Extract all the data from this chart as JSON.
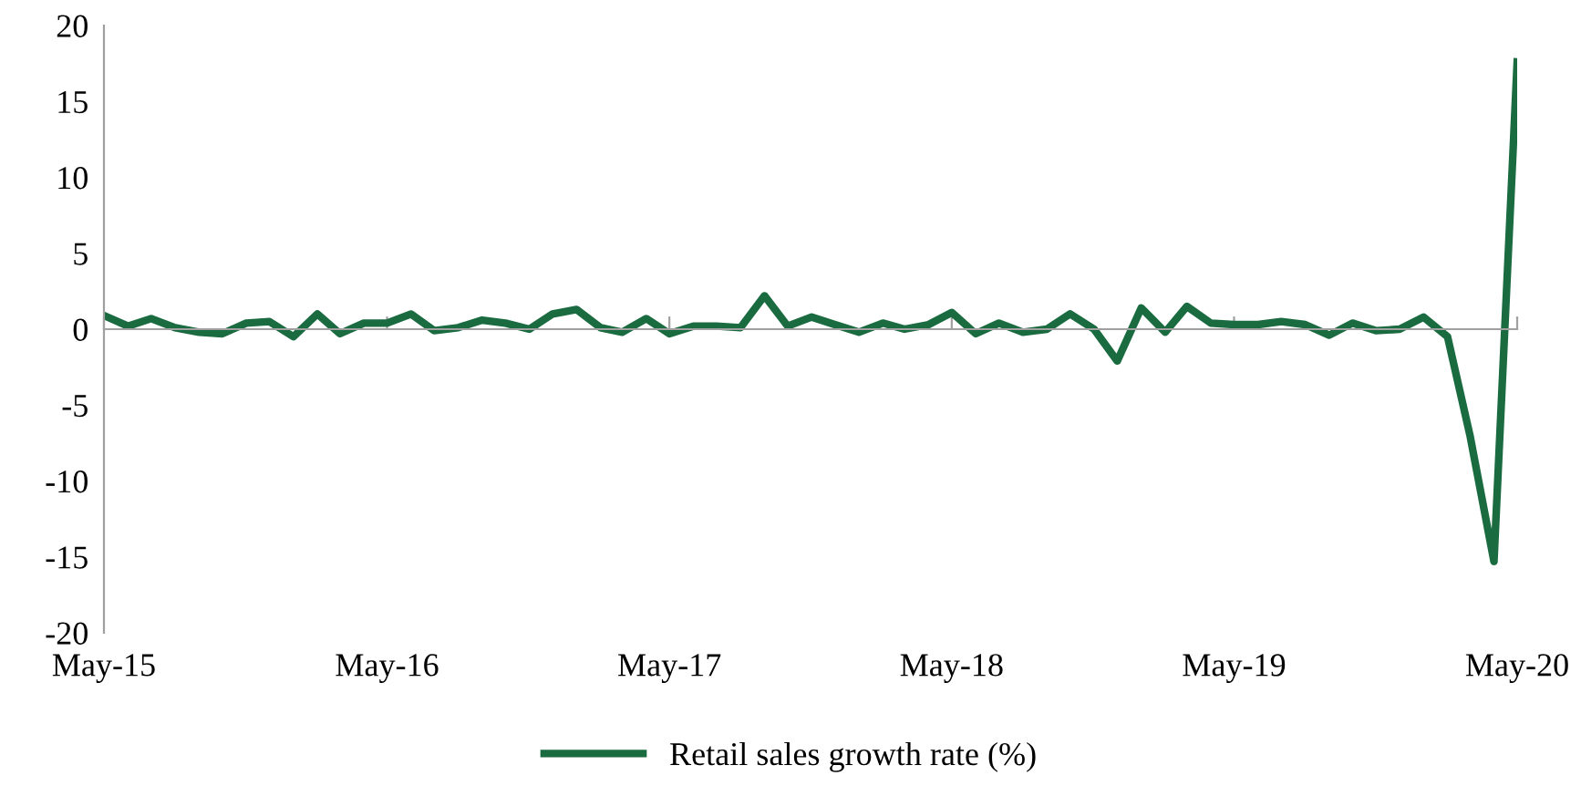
{
  "chart_data": {
    "type": "line",
    "x": [
      "2015-05",
      "2015-06",
      "2015-07",
      "2015-08",
      "2015-09",
      "2015-10",
      "2015-11",
      "2015-12",
      "2016-01",
      "2016-02",
      "2016-03",
      "2016-04",
      "2016-05",
      "2016-06",
      "2016-07",
      "2016-08",
      "2016-09",
      "2016-10",
      "2016-11",
      "2016-12",
      "2017-01",
      "2017-02",
      "2017-03",
      "2017-04",
      "2017-05",
      "2017-06",
      "2017-07",
      "2017-08",
      "2017-09",
      "2017-10",
      "2017-11",
      "2017-12",
      "2018-01",
      "2018-02",
      "2018-03",
      "2018-04",
      "2018-05",
      "2018-06",
      "2018-07",
      "2018-08",
      "2018-09",
      "2018-10",
      "2018-11",
      "2018-12",
      "2019-01",
      "2019-02",
      "2019-03",
      "2019-04",
      "2019-05",
      "2019-06",
      "2019-07",
      "2019-08",
      "2019-09",
      "2019-10",
      "2019-11",
      "2019-12",
      "2020-01",
      "2020-02",
      "2020-03",
      "2020-04",
      "2020-05"
    ],
    "series": [
      {
        "name": "Retail sales growth rate (%)",
        "color": "#1b6b41",
        "values": [
          0.9,
          0.2,
          0.7,
          0.1,
          -0.2,
          -0.3,
          0.4,
          0.5,
          -0.5,
          1.0,
          -0.3,
          0.4,
          0.4,
          1.0,
          -0.1,
          0.1,
          0.6,
          0.4,
          0.0,
          1.0,
          1.3,
          0.1,
          -0.2,
          0.7,
          -0.3,
          0.2,
          0.2,
          0.1,
          2.2,
          0.2,
          0.8,
          0.3,
          -0.2,
          0.4,
          0.0,
          0.3,
          1.1,
          -0.3,
          0.4,
          -0.2,
          0.0,
          1.0,
          0.0,
          -2.1,
          1.4,
          -0.2,
          1.5,
          0.4,
          0.3,
          0.3,
          0.5,
          0.3,
          -0.4,
          0.4,
          -0.1,
          0.0,
          0.8,
          -0.5,
          -7.0,
          -15.3,
          17.6
        ]
      }
    ],
    "xlim": [
      "2015-05",
      "2020-05"
    ],
    "xticks": [
      {
        "value": "2015-05",
        "label": "May-15"
      },
      {
        "value": "2016-05",
        "label": "May-16"
      },
      {
        "value": "2017-05",
        "label": "May-17"
      },
      {
        "value": "2018-05",
        "label": "May-18"
      },
      {
        "value": "2019-05",
        "label": "May-19"
      },
      {
        "value": "2020-05",
        "label": "May-20"
      }
    ],
    "ylim": [
      -20,
      20
    ],
    "yticks": [
      -20,
      -15,
      -10,
      -5,
      0,
      5,
      10,
      15,
      20
    ],
    "legend": "bottom",
    "marker": "none",
    "line_style": "solid"
  }
}
